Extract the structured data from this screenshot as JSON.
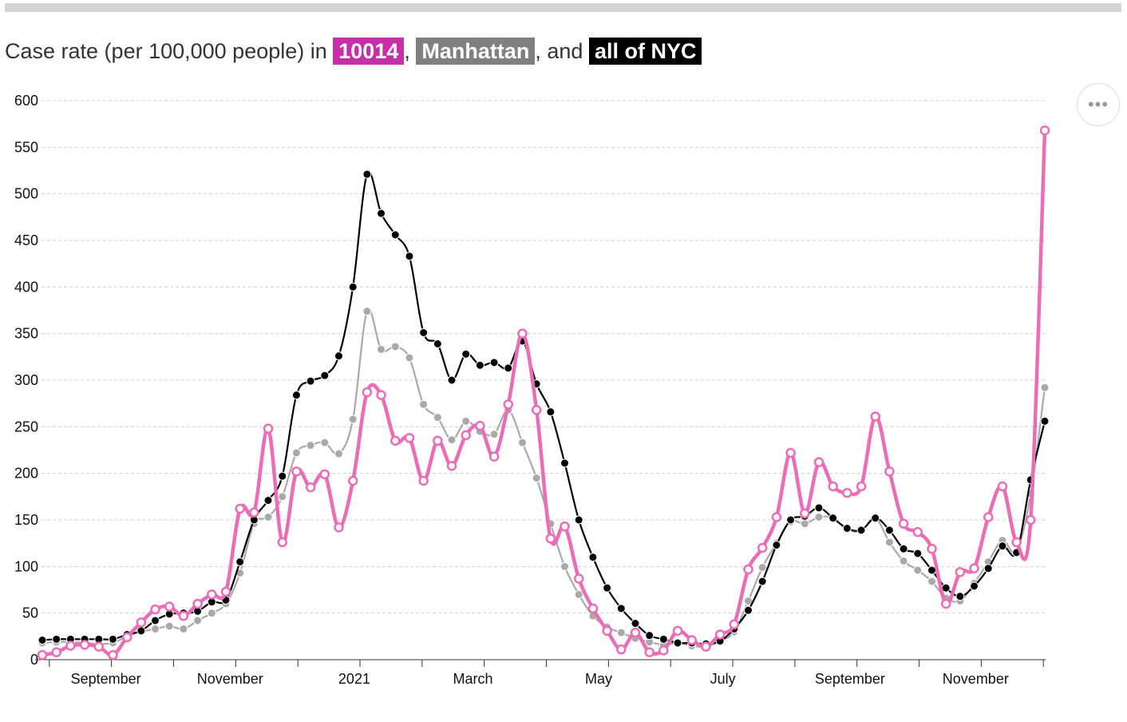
{
  "title": {
    "prefix": "Case rate (per 100,000 people) in ",
    "zip_label": "10014",
    "sep1": ", ",
    "borough_label": "Manhattan",
    "sep2": ", and ",
    "city_label": "all of NYC"
  },
  "menu": {
    "icon": "more-horizontal-icon",
    "glyph": "•••"
  },
  "colors": {
    "zip": "#ea6db5",
    "zip_badge": "#c52fa8",
    "manhattan": "#a9a9a9",
    "manhattan_badge": "#808080",
    "nyc": "#000000",
    "grid": "#d0d0d0"
  },
  "chart_data": {
    "type": "line",
    "title": "Case rate (per 100,000 people) in 10014, Manhattan, and all of NYC",
    "xlabel": "",
    "ylabel": "",
    "ylim": [
      0,
      600
    ],
    "yticks": [
      0,
      50,
      100,
      150,
      200,
      250,
      300,
      350,
      400,
      450,
      500,
      550,
      600
    ],
    "x_tick_labels": [
      "September",
      "November",
      "2021",
      "March",
      "May",
      "July",
      "September",
      "November"
    ],
    "x_tick_weeks": [
      4.5,
      13.3,
      22.1,
      30.5,
      39.4,
      48.2,
      57.2,
      66.1
    ],
    "grid": true,
    "x": [
      0,
      1,
      2,
      3,
      4,
      5,
      6,
      7,
      8,
      9,
      10,
      11,
      12,
      13,
      14,
      15,
      16,
      17,
      18,
      19,
      20,
      21,
      22,
      23,
      24,
      25,
      26,
      27,
      28,
      29,
      30,
      31,
      32,
      33,
      34,
      35,
      36,
      37,
      38,
      39,
      40,
      41,
      42,
      43,
      44,
      45,
      46,
      47,
      48,
      49,
      50,
      51,
      52,
      53,
      54,
      55,
      56,
      57,
      58,
      59,
      60,
      61,
      62,
      63,
      64,
      65,
      66,
      67,
      68,
      69,
      70,
      71
    ],
    "series": [
      {
        "name": "10014",
        "values": [
          5,
          8,
          15,
          16,
          14,
          5,
          24,
          40,
          54,
          57,
          47,
          60,
          70,
          73,
          162,
          158,
          248,
          126,
          202,
          185,
          199,
          142,
          192,
          287,
          284,
          235,
          238,
          192,
          235,
          208,
          241,
          251,
          218,
          274,
          350,
          268,
          130,
          143,
          87,
          55,
          31,
          11,
          29,
          8,
          10,
          31,
          21,
          14,
          27,
          38,
          97,
          120,
          153,
          222,
          157,
          212,
          186,
          179,
          186,
          261,
          202,
          146,
          137,
          119,
          60,
          94,
          98,
          153,
          186,
          126,
          150,
          568
        ]
      },
      {
        "name": "Manhattan",
        "values": [
          18,
          19,
          19,
          18,
          17,
          18,
          25,
          30,
          33,
          36,
          33,
          42,
          50,
          60,
          93,
          146,
          153,
          175,
          222,
          230,
          233,
          221,
          258,
          374,
          333,
          336,
          324,
          274,
          260,
          236,
          256,
          245,
          242,
          268,
          233,
          195,
          146,
          100,
          70,
          47,
          35,
          29,
          23,
          19,
          16,
          18,
          15,
          14,
          20,
          30,
          63,
          99,
          125,
          148,
          146,
          153,
          152,
          140,
          138,
          152,
          126,
          106,
          96,
          84,
          66,
          63,
          82,
          105,
          128,
          116,
          178,
          292
        ]
      },
      {
        "name": "all of NYC",
        "values": [
          21,
          22,
          22,
          22,
          22,
          22,
          27,
          31,
          42,
          49,
          50,
          52,
          62,
          64,
          105,
          150,
          171,
          197,
          284,
          299,
          305,
          326,
          400,
          521,
          479,
          456,
          433,
          351,
          339,
          300,
          328,
          316,
          319,
          313,
          342,
          296,
          266,
          211,
          150,
          110,
          77,
          55,
          39,
          26,
          22,
          18,
          18,
          17,
          20,
          33,
          53,
          84,
          123,
          150,
          154,
          163,
          152,
          141,
          139,
          152,
          139,
          119,
          114,
          96,
          77,
          68,
          79,
          98,
          122,
          115,
          193,
          256
        ]
      }
    ]
  }
}
